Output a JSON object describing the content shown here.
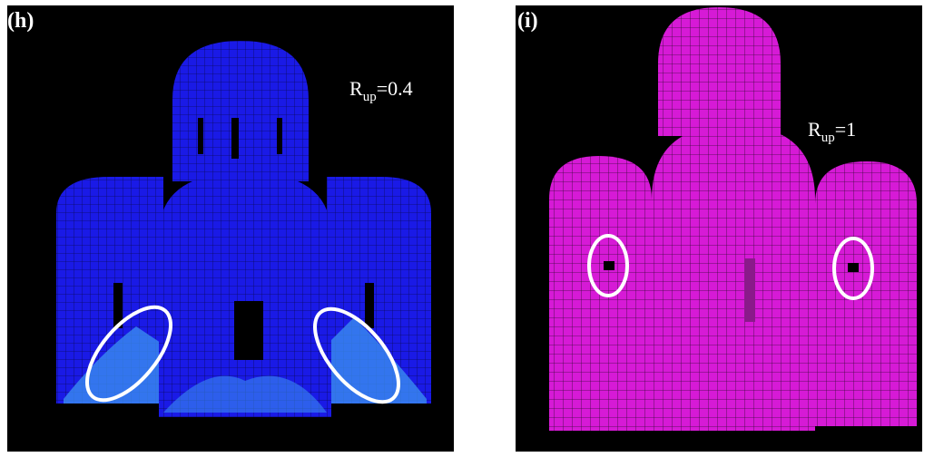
{
  "panels": [
    {
      "label": "(h)",
      "annotation": {
        "base": "R",
        "subscript": "up",
        "value": "=0.4"
      }
    },
    {
      "label": "(i)",
      "annotation": {
        "base": "R",
        "subscript": "up",
        "value": "=1"
      }
    }
  ]
}
